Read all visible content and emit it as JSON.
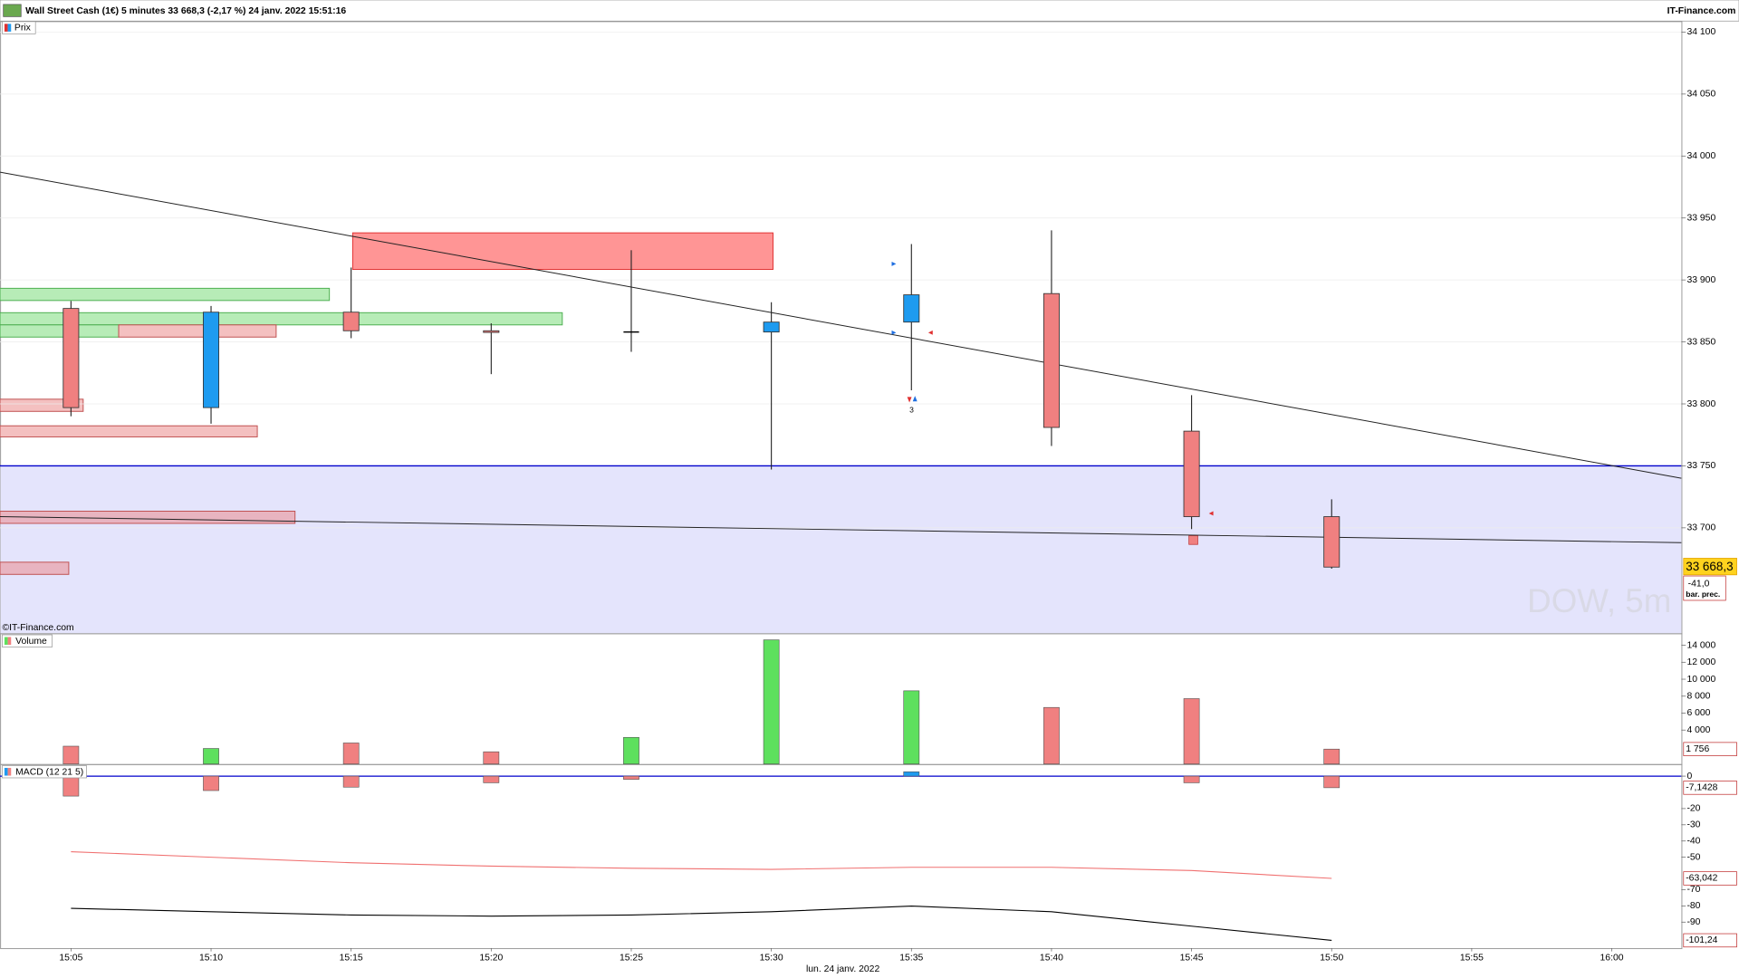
{
  "header": {
    "title": "Wall Street Cash (1€) 5 minutes 33 668,3 (-2,17 %) 24 janv. 2022 15:51:16",
    "source": "IT-Finance.com"
  },
  "x_axis_label": "lun. 24 janv. 2022",
  "chart_data": [
    {
      "type": "candlestick",
      "title": "Prix",
      "watermark": "DOW, 5m",
      "copyright": "©IT-Finance.com",
      "categories": [
        "15:05",
        "15:10",
        "15:15",
        "15:20",
        "15:25",
        "15:30",
        "15:35",
        "15:40",
        "15:45",
        "15:50",
        "15:55",
        "16:00"
      ],
      "open": [
        33877,
        33797,
        33874,
        33859,
        33858,
        33858,
        33866,
        33889,
        33778,
        33709,
        null,
        null
      ],
      "high": [
        33883,
        33879,
        33910,
        33865,
        33924,
        33882,
        33929,
        33940,
        33807,
        33723,
        null,
        null
      ],
      "low": [
        33790,
        33784,
        33853,
        33824,
        33842,
        33747,
        33811,
        33766,
        33699,
        33667,
        null,
        null
      ],
      "close": [
        33797,
        33874,
        33859,
        33858,
        33858,
        33866,
        33888,
        33781,
        33709,
        33668.3,
        null,
        null
      ],
      "value_labels": [
        null,
        null,
        null,
        null,
        null,
        null,
        null,
        null,
        null,
        "33 668,3",
        null,
        null
      ],
      "up_color": "#1e9bf0",
      "down_color": "#f08080",
      "ylim": [
        33615,
        34108
      ],
      "yticks": [
        {
          "value": 33700,
          "label": "33 700"
        },
        {
          "value": 33750,
          "label": "33 750"
        },
        {
          "value": 33800,
          "label": "33 800"
        },
        {
          "value": 33850,
          "label": "33 850"
        },
        {
          "value": 33900,
          "label": "33 900"
        },
        {
          "value": 33950,
          "label": "33 950"
        },
        {
          "value": 34000,
          "label": "34 000"
        },
        {
          "value": 34050,
          "label": "34 050"
        },
        {
          "value": 34100,
          "label": "34 100"
        }
      ],
      "grid": true,
      "support": 33750,
      "support_color": "#0000cc",
      "trendlines": [
        {
          "from": 33987,
          "to": 33740
        },
        {
          "from": 33709,
          "to": 33688
        }
      ],
      "marker_label": "3",
      "change_label": "-41,0",
      "change_note": "bar. prec."
    },
    {
      "type": "bar",
      "title": "Volume",
      "categories": [
        "15:05",
        "15:10",
        "15:15",
        "15:20",
        "15:25",
        "15:30",
        "15:35",
        "15:40",
        "15:45",
        "15:50",
        "15:55",
        "16:00"
      ],
      "values": [
        2100,
        1830,
        2480,
        1440,
        3140,
        14640,
        8630,
        6670,
        7710,
        1756,
        null,
        null
      ],
      "value_labels": [
        null,
        null,
        null,
        null,
        null,
        null,
        null,
        null,
        null,
        "1 756",
        null,
        null
      ],
      "colors": [
        "#f08080",
        "#5ee05e",
        "#f08080",
        "#f08080",
        "#5ee05e",
        "#5ee05e",
        "#5ee05e",
        "#f08080",
        "#f08080",
        "#f08080",
        null,
        null
      ],
      "ylim": [
        0,
        15300
      ],
      "yticks": [
        {
          "value": 4000,
          "label": "4 000"
        },
        {
          "value": 6000,
          "label": "6 000"
        },
        {
          "value": 8000,
          "label": "8 000"
        },
        {
          "value": 10000,
          "label": "10 000"
        },
        {
          "value": 12000,
          "label": "12 000"
        },
        {
          "value": 14000,
          "label": "14 000"
        }
      ]
    },
    {
      "type": "macd",
      "title": "MACD (12 21 5)",
      "categories": [
        "15:05",
        "15:10",
        "15:15",
        "15:20",
        "15:25",
        "15:30",
        "15:35",
        "15:40",
        "15:45",
        "15:50",
        "15:55",
        "16:00"
      ],
      "histogram": {
        "up_color": "#1e9bf0",
        "down_color": "#f08080",
        "values": [
          -12.3,
          -8.9,
          -6.8,
          -4.1,
          -2,
          0,
          2.7,
          0,
          -4.1,
          -7.1428,
          null,
          null
        ],
        "value_labels": [
          null,
          null,
          null,
          null,
          null,
          null,
          null,
          null,
          null,
          "-7,1428",
          null,
          null
        ]
      },
      "series": [
        {
          "color": "#f07070",
          "values": [
            -46.6,
            -50,
            -53.4,
            -55.5,
            -56.8,
            -57.5,
            -56.2,
            -56.2,
            -58.2,
            -63.042,
            null,
            null
          ],
          "value_labels": [
            null,
            null,
            null,
            null,
            null,
            null,
            null,
            null,
            null,
            "-63,042",
            null,
            null
          ]
        },
        {
          "color": "#000000",
          "values": [
            -81.5,
            -83.6,
            -85.6,
            -86.3,
            -85.6,
            -83.6,
            -80.1,
            -83.6,
            -92.5,
            -101.24,
            null,
            null
          ],
          "value_labels": [
            null,
            null,
            null,
            null,
            null,
            null,
            null,
            null,
            null,
            "-101,24",
            null,
            null
          ]
        }
      ],
      "zero_color": "#0000cc",
      "ylim": [
        -106,
        6.8
      ],
      "yticks": [
        0,
        -20,
        -30,
        -40,
        -50,
        -70,
        -80,
        -90
      ]
    }
  ]
}
